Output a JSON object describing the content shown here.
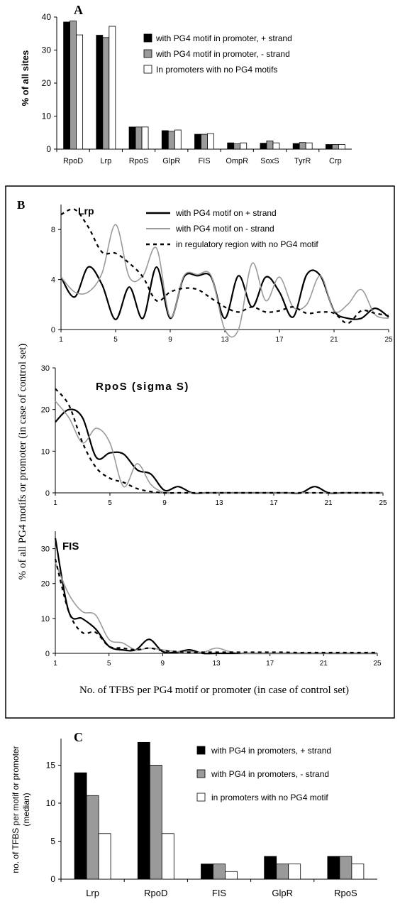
{
  "chart_data": [
    {
      "panel": "A",
      "type": "bar",
      "ylabel": "% of all sites",
      "ylim": [
        0,
        40
      ],
      "yticks": [
        0,
        10,
        20,
        30,
        40
      ],
      "categories": [
        "RpoD",
        "Lrp",
        "RpoS",
        "GlpR",
        "FIS",
        "OmpR",
        "SoxS",
        "TyrR",
        "Crp"
      ],
      "series": [
        {
          "name": "with PG4 motif in promoter, + strand",
          "color": "#000000",
          "values": [
            38.5,
            34.5,
            6.7,
            5.6,
            4.5,
            1.9,
            1.8,
            1.7,
            1.4
          ]
        },
        {
          "name": "with PG4 motif in promoter, - strand",
          "color": "#9a9a9a",
          "values": [
            38.8,
            33.8,
            6.7,
            5.4,
            4.5,
            1.6,
            2.5,
            2.0,
            1.4
          ]
        },
        {
          "name": "In promoters with no PG4 motifs",
          "color": "#ffffff",
          "values": [
            34.6,
            37.2,
            6.7,
            5.8,
            4.7,
            1.9,
            1.9,
            1.9,
            1.4
          ]
        }
      ]
    },
    {
      "panel": "B",
      "type": "line",
      "xlabel": "No. of TFBS per PG4 motif or promoter (in case of control set)",
      "ylabel": "% of all PG4 motifs or promoter (in case of control set)",
      "xticks": [
        1,
        5,
        9,
        13,
        17,
        21,
        25
      ],
      "legend": [
        {
          "name": "with PG4 motif on + strand",
          "style": "solid-black"
        },
        {
          "name": "with PG4 motif on - strand",
          "style": "solid-gray"
        },
        {
          "name": "in regulatory region with no PG4 motif",
          "style": "dashed-black"
        }
      ],
      "subplots": [
        {
          "title": "Lrp",
          "ylim": [
            0,
            10
          ],
          "yticks": [
            0,
            4,
            8
          ],
          "series": [
            {
              "name": "with PG4 motif on + strand",
              "x": [
                1,
                2,
                3,
                4,
                5,
                6,
                7,
                8,
                9,
                10,
                11,
                12,
                13,
                14,
                15,
                16,
                17,
                18,
                19,
                20,
                21,
                22,
                23,
                24,
                25
              ],
              "y": [
                4.2,
                2.6,
                5.0,
                3.6,
                0.8,
                3.4,
                0.9,
                5.0,
                0.9,
                4.2,
                4.3,
                4.2,
                0.9,
                4.3,
                1.8,
                4.2,
                3.0,
                1.0,
                4.4,
                4.3,
                1.5,
                0.9,
                0.9,
                1.7,
                1.0
              ]
            },
            {
              "name": "with PG4 motif on - strand",
              "x": [
                1,
                2,
                3,
                4,
                5,
                6,
                7,
                8,
                9,
                10,
                11,
                12,
                13,
                14,
                15,
                16,
                17,
                18,
                19,
                20,
                21,
                22,
                23,
                24,
                25
              ],
              "y": [
                4.2,
                3.0,
                3.0,
                4.5,
                8.4,
                4.2,
                4.3,
                6.5,
                1.0,
                4.3,
                4.4,
                4.3,
                0.0,
                0.0,
                5.3,
                2.3,
                4.2,
                1.8,
                2.0,
                4.3,
                1.5,
                2.0,
                3.2,
                1.2,
                0.9
              ]
            },
            {
              "name": "in regulatory region with no PG4 motif",
              "x": [
                1,
                2,
                3,
                4,
                5,
                6,
                7,
                8,
                9,
                10,
                11,
                12,
                13,
                14,
                15,
                16,
                17,
                18,
                19,
                20,
                21,
                22,
                23,
                24,
                25
              ],
              "y": [
                9.2,
                9.6,
                8.2,
                6.2,
                6.1,
                5.3,
                4.2,
                2.3,
                3.0,
                3.3,
                3.2,
                2.5,
                1.8,
                1.4,
                1.8,
                1.4,
                1.5,
                1.8,
                1.3,
                1.4,
                1.3,
                0.5,
                1.5,
                1.3,
                1.1
              ]
            }
          ]
        },
        {
          "title": "RpoS (sigma S)",
          "ylim": [
            0,
            30
          ],
          "yticks": [
            0,
            10,
            20,
            30
          ],
          "series": [
            {
              "name": "with PG4 motif on + strand",
              "x": [
                1,
                2,
                3,
                4,
                5,
                6,
                7,
                8,
                9,
                10,
                11,
                12,
                13,
                14,
                15,
                16,
                17,
                18,
                19,
                20,
                21,
                22,
                23,
                24,
                25
              ],
              "y": [
                17,
                20,
                18,
                8.5,
                9.6,
                9.3,
                5.5,
                4.5,
                0.6,
                1.5,
                0,
                0,
                0,
                0,
                0,
                0,
                0,
                0,
                0,
                1.5,
                0,
                0,
                0,
                0,
                0
              ]
            },
            {
              "name": "with PG4 motif on - strand",
              "x": [
                1,
                2,
                3,
                4,
                5,
                6,
                7,
                8,
                9,
                10,
                11,
                12,
                13,
                14,
                15,
                16,
                17,
                18,
                19,
                20,
                21,
                22,
                23,
                24,
                25
              ],
              "y": [
                22,
                18,
                12,
                15.5,
                12,
                1.5,
                7,
                2,
                0,
                0,
                0,
                0,
                0,
                0,
                0,
                0,
                0,
                0,
                0,
                0,
                0,
                0,
                0,
                0,
                0
              ]
            },
            {
              "name": "in regulatory region with no PG4 motif",
              "x": [
                1,
                2,
                3,
                4,
                5,
                6,
                7,
                8,
                9,
                10,
                11,
                12,
                13,
                14,
                15,
                16,
                17,
                18,
                19,
                20,
                21,
                22,
                23,
                24,
                25
              ],
              "y": [
                25,
                21,
                12,
                6,
                3.5,
                2.5,
                1,
                0.3,
                0,
                0,
                0,
                0,
                0,
                0,
                0,
                0,
                0,
                0,
                0,
                0,
                0,
                0,
                0,
                0,
                0
              ]
            }
          ]
        },
        {
          "title": "FIS",
          "ylim": [
            0,
            35
          ],
          "yticks": [
            0,
            10,
            20,
            30
          ],
          "series": [
            {
              "name": "with PG4 motif on + strand",
              "x": [
                1,
                2,
                3,
                4,
                5,
                6,
                7,
                8,
                9,
                10,
                11,
                12,
                13,
                14,
                15,
                16,
                17,
                18,
                19,
                20,
                21,
                22,
                23,
                24,
                25
              ],
              "y": [
                33,
                12,
                10,
                7,
                2,
                1,
                1,
                4,
                0.5,
                0.3,
                1,
                0,
                0,
                0,
                0,
                0,
                0,
                0,
                0,
                0,
                0,
                0,
                0,
                0,
                0
              ]
            },
            {
              "name": "with PG4 motif on - strand",
              "x": [
                1,
                2,
                3,
                4,
                5,
                6,
                7,
                8,
                9,
                10,
                11,
                12,
                13,
                14,
                15,
                16,
                17,
                18,
                19,
                20,
                21,
                22,
                23,
                24,
                25
              ],
              "y": [
                26,
                17,
                12,
                11,
                4,
                3,
                1,
                1.5,
                1,
                0.5,
                0.5,
                0.3,
                1.5,
                0.5,
                0,
                0,
                0,
                0,
                0,
                0,
                0,
                0,
                0,
                0,
                0
              ]
            },
            {
              "name": "in regulatory region with no PG4 motif",
              "x": [
                1,
                2,
                3,
                4,
                5,
                6,
                7,
                8,
                9,
                10,
                11,
                12,
                13,
                14,
                15,
                16,
                17,
                18,
                19,
                20,
                21,
                22,
                23,
                24,
                25
              ],
              "y": [
                27,
                12,
                6,
                6,
                2,
                1.5,
                1,
                1.5,
                0.8,
                0.5,
                0.3,
                0.3,
                0.3,
                0.3,
                0.3,
                0.3,
                0.3,
                0.3,
                0.2,
                0.2,
                0.2,
                0.2,
                0.2,
                0.2,
                0.2
              ]
            }
          ]
        }
      ]
    },
    {
      "panel": "C",
      "type": "bar",
      "ylabel": "no. of TFBS per motif or promoter (median)",
      "ylim": [
        0,
        18.5
      ],
      "yticks": [
        0,
        5,
        10,
        15
      ],
      "categories": [
        "Lrp",
        "RpoD",
        "FIS",
        "GlpR",
        "RpoS"
      ],
      "series": [
        {
          "name": "with PG4 in promoters, + strand",
          "color": "#000000",
          "values": [
            14,
            18,
            2,
            3,
            3
          ]
        },
        {
          "name": "with PG4 in promoters,  - strand",
          "color": "#9a9a9a",
          "values": [
            11,
            15,
            2,
            2,
            3
          ]
        },
        {
          "name": "in promoters with no PG4 motif",
          "color": "#ffffff",
          "values": [
            6,
            6,
            1,
            2,
            2
          ]
        }
      ]
    }
  ]
}
